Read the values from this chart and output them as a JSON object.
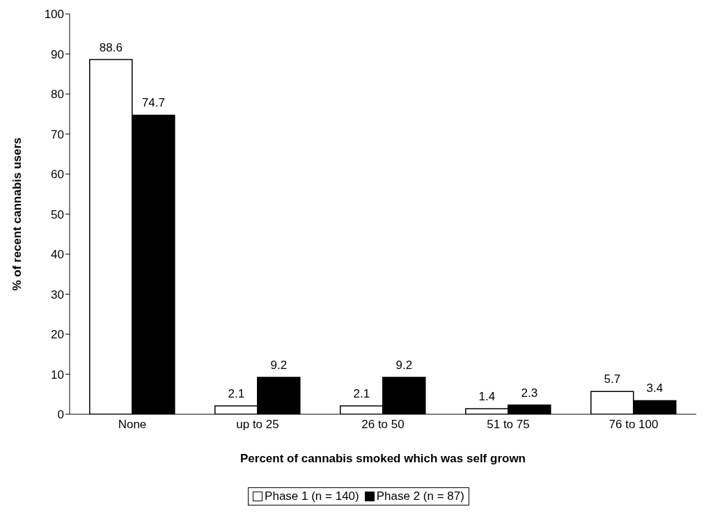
{
  "chart_data": {
    "type": "bar",
    "xlabel": "Percent of cannabis smoked which was self grown",
    "ylabel": "% of recent cannabis users",
    "categories": [
      "None",
      "up to 25",
      "26 to 50",
      "51 to 75",
      "76 to 100"
    ],
    "series": [
      {
        "name": "Phase 1 (n = 140)",
        "color": "#ffffff",
        "values": [
          88.6,
          2.1,
          2.1,
          1.4,
          5.7
        ]
      },
      {
        "name": "Phase 2 (n = 87)",
        "color": "#000000",
        "values": [
          74.7,
          9.2,
          9.2,
          2.3,
          3.4
        ]
      }
    ],
    "ylim": [
      0,
      100
    ],
    "yticks": [
      0,
      10,
      20,
      30,
      40,
      50,
      60,
      70,
      80,
      90,
      100
    ],
    "data_labels": true,
    "legend": "bottom",
    "grid": false
  }
}
